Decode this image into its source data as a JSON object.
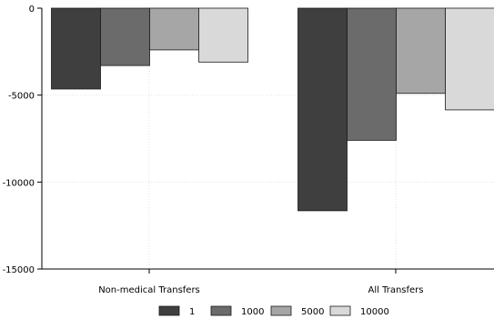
{
  "chart_data": {
    "type": "bar",
    "orientation": "vertical",
    "categories": [
      "Non-medical Transfers",
      "All Transfers"
    ],
    "series": [
      {
        "name": "1",
        "values": [
          -4650,
          -11650
        ],
        "color": "#3f3f3f"
      },
      {
        "name": "1000",
        "values": [
          -3300,
          -7600
        ],
        "color": "#6b6b6b"
      },
      {
        "name": "5000",
        "values": [
          -2400,
          -4900
        ],
        "color": "#a6a6a6"
      },
      {
        "name": "10000",
        "values": [
          -3100,
          -5850
        ],
        "color": "#d9d9d9"
      }
    ],
    "yticks": [
      0,
      -5000,
      -10000,
      -15000
    ],
    "ylim": [
      -15000,
      0
    ],
    "grid": true,
    "legend_position": "bottom"
  }
}
